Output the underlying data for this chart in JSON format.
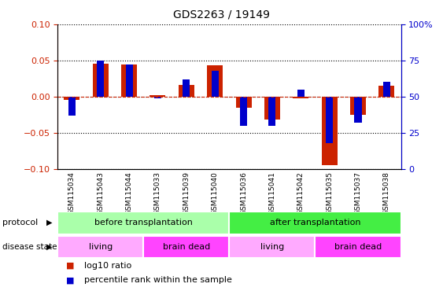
{
  "title": "GDS2263 / 19149",
  "samples": [
    "GSM115034",
    "GSM115043",
    "GSM115044",
    "GSM115033",
    "GSM115039",
    "GSM115040",
    "GSM115036",
    "GSM115041",
    "GSM115042",
    "GSM115035",
    "GSM115037",
    "GSM115038"
  ],
  "log10_ratio": [
    -0.005,
    0.045,
    0.044,
    0.002,
    0.016,
    0.043,
    -0.015,
    -0.032,
    -0.002,
    -0.095,
    -0.025,
    0.015
  ],
  "percentile_rank": [
    37,
    75,
    72,
    49,
    62,
    68,
    30,
    30,
    55,
    18,
    32,
    60
  ],
  "ylim_left": [
    -0.1,
    0.1
  ],
  "ylim_right": [
    0,
    100
  ],
  "yticks_left": [
    -0.1,
    -0.05,
    0,
    0.05,
    0.1
  ],
  "yticks_right": [
    0,
    25,
    50,
    75,
    100
  ],
  "red_color": "#CC2200",
  "blue_color": "#0000CC",
  "protocol_groups": [
    {
      "label": "before transplantation",
      "start": 0,
      "end": 5,
      "color": "#aaffaa"
    },
    {
      "label": "after transplantation",
      "start": 6,
      "end": 11,
      "color": "#44ee44"
    }
  ],
  "disease_groups": [
    {
      "label": "living",
      "start": 0,
      "end": 2,
      "color": "#ffaaff"
    },
    {
      "label": "brain dead",
      "start": 3,
      "end": 5,
      "color": "#ff44ff"
    },
    {
      "label": "living",
      "start": 6,
      "end": 8,
      "color": "#ffaaff"
    },
    {
      "label": "brain dead",
      "start": 9,
      "end": 11,
      "color": "#ff44ff"
    }
  ],
  "legend_items": [
    {
      "label": "log10 ratio",
      "color": "#CC2200"
    },
    {
      "label": "percentile rank within the sample",
      "color": "#0000CC"
    }
  ]
}
